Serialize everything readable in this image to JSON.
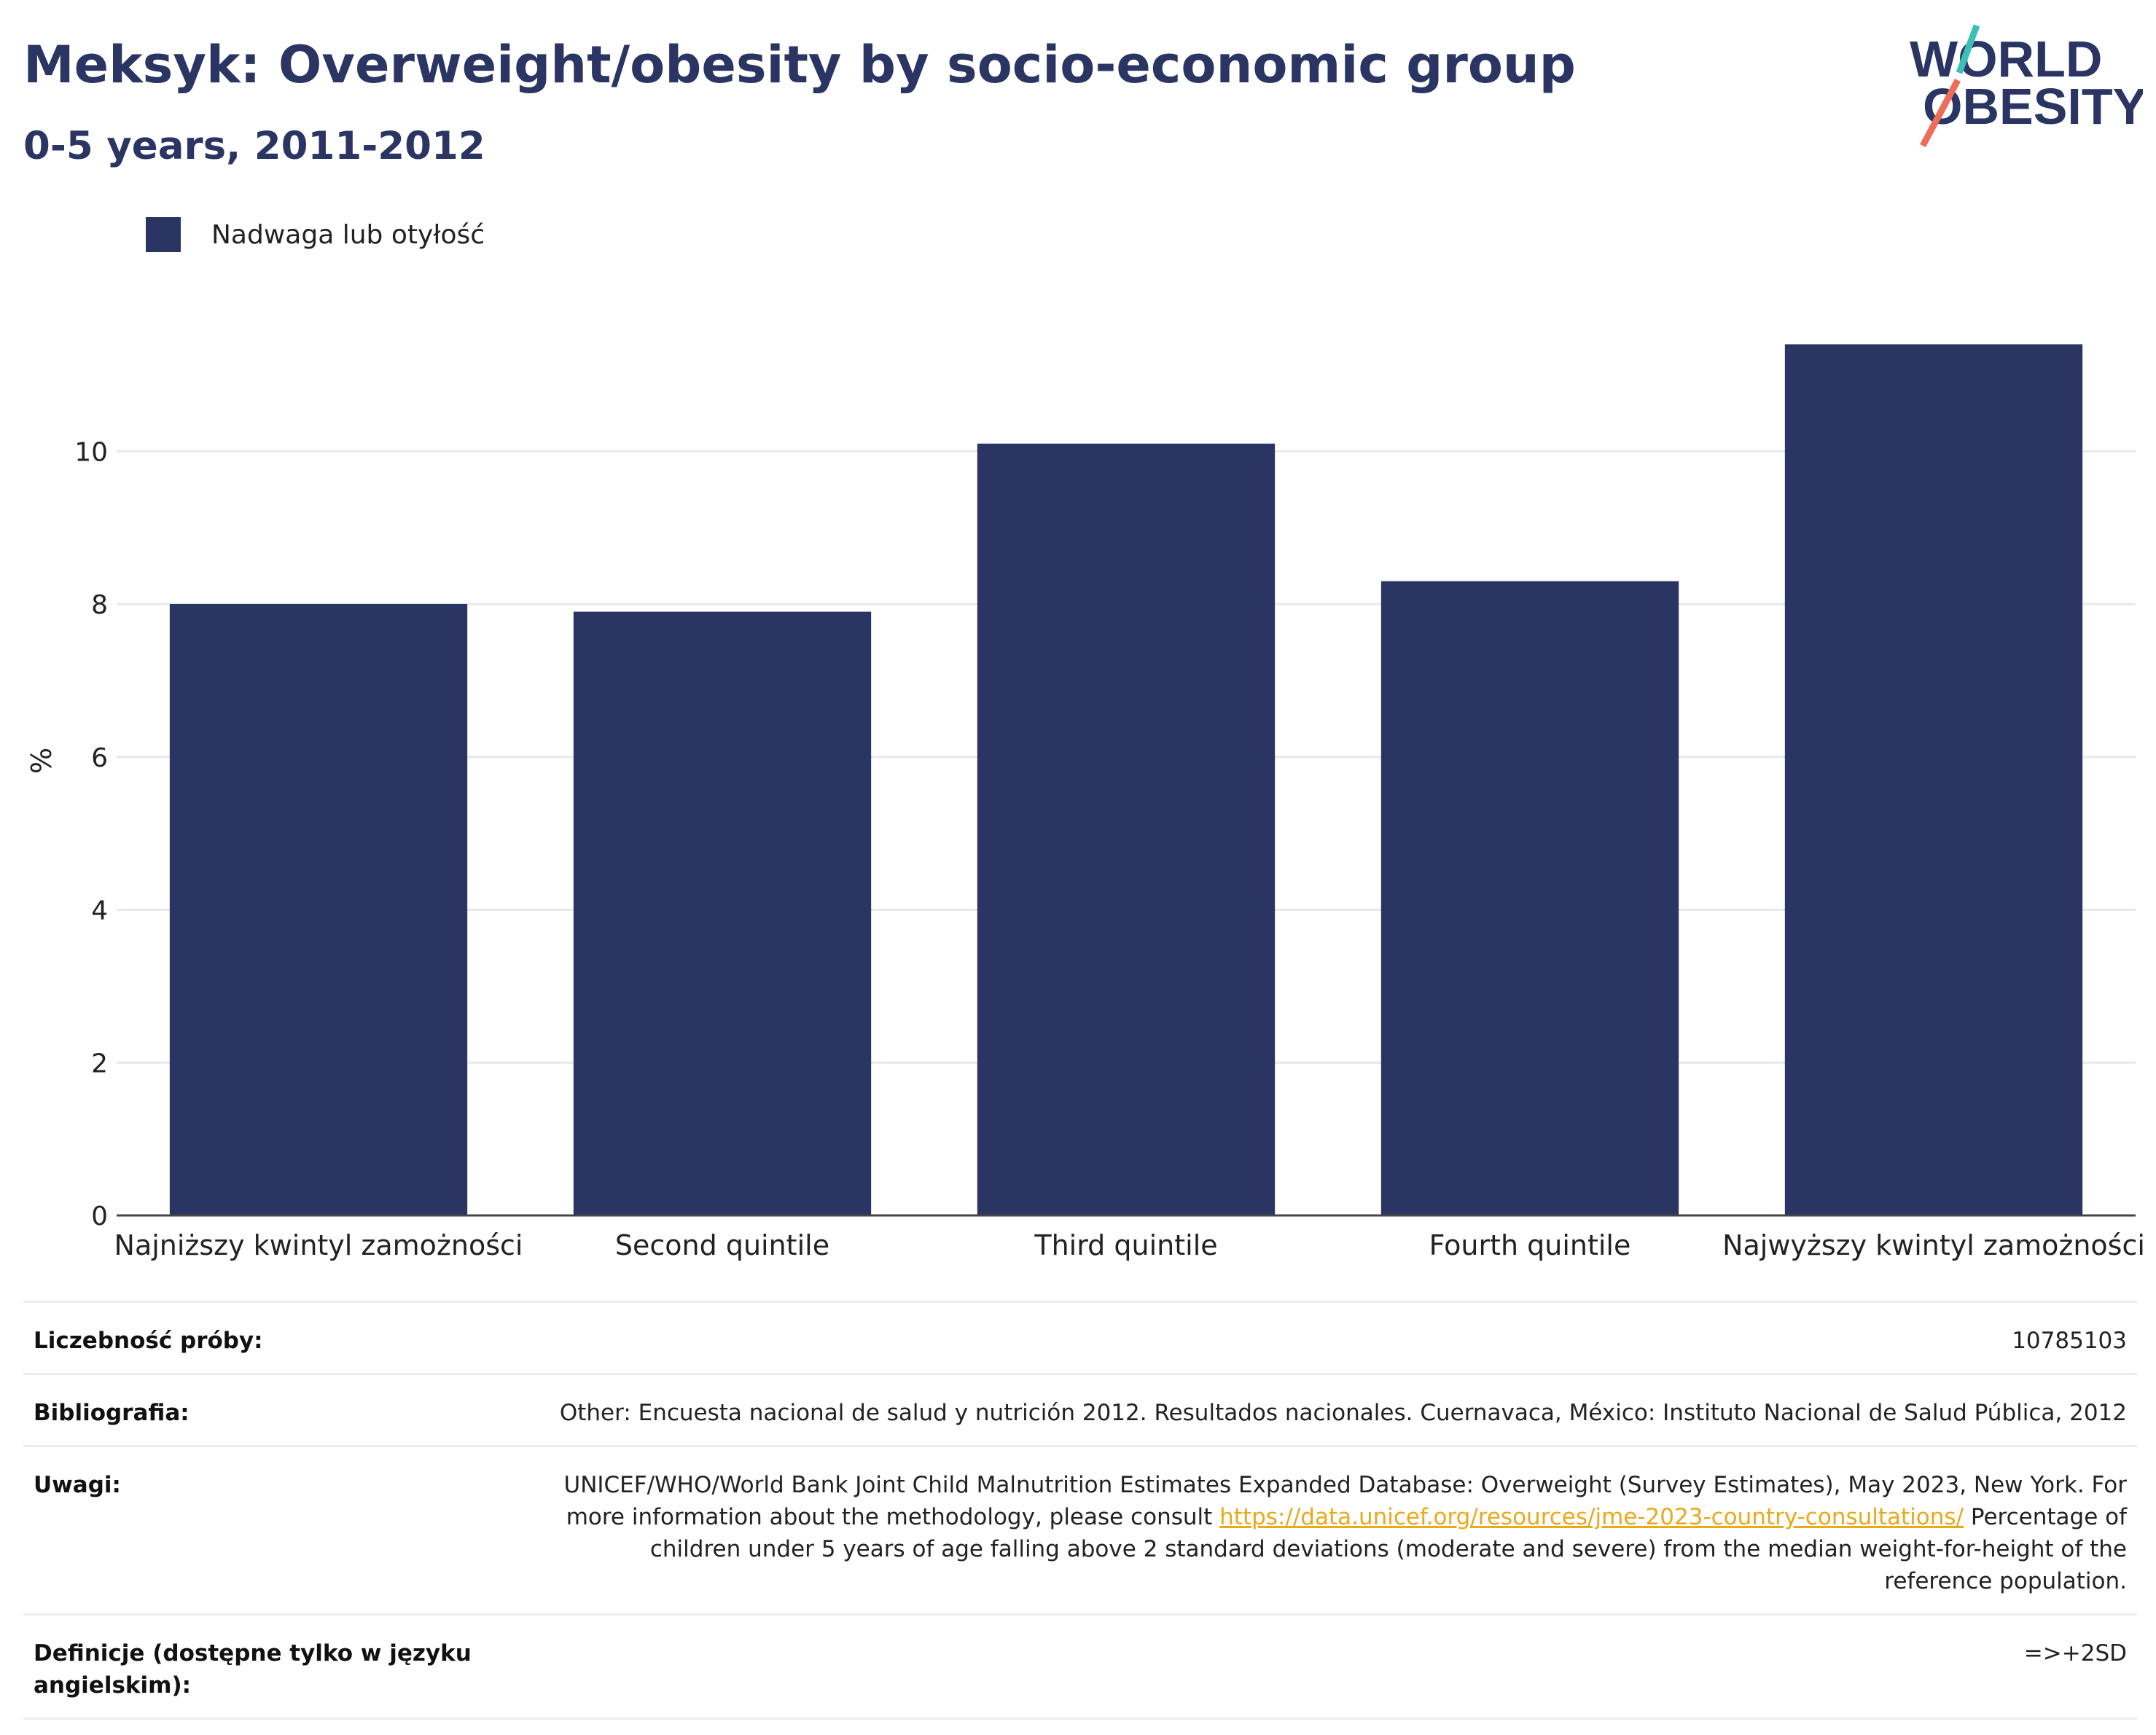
{
  "header": {
    "title": "Meksyk: Overweight/obesity by socio-economic group",
    "subtitle": "0-5 years, 2011-2012"
  },
  "logo": {
    "line1": "WORLD",
    "line2": "OBESITY",
    "text_color": "#2a3563",
    "accent_teal": "#3bbfb8",
    "accent_coral": "#ee6c5a"
  },
  "legend": {
    "label": "Nadwaga lub otyłość",
    "color": "#2a3563"
  },
  "chart_data": {
    "type": "bar",
    "categories": [
      "Najniższy kwintyl zamożności",
      "Second quintile",
      "Third quintile",
      "Fourth quintile",
      "Najwyższy kwintyl zamożności"
    ],
    "series": [
      {
        "name": "Nadwaga lub otyłość",
        "values": [
          8.0,
          7.9,
          10.1,
          8.3,
          11.4
        ],
        "color": "#2a3563"
      }
    ],
    "ylabel": "%",
    "yticks": [
      0,
      2,
      4,
      6,
      8,
      10
    ],
    "ylim": [
      0,
      11.9
    ],
    "grid": true,
    "legend_position": "top-left"
  },
  "info": [
    {
      "label": "Liczebność próby:",
      "value": "10785103"
    },
    {
      "label": "Bibliografia:",
      "value": "Other: Encuesta nacional de salud y nutrición 2012. Resultados nacionales. Cuernavaca, México: Instituto Nacional de Salud Pública, 2012"
    },
    {
      "label": "Uwagi:",
      "value_before": "UNICEF/WHO/World Bank Joint Child Malnutrition Estimates Expanded Database: Overweight (Survey Estimates), May 2023, New York. For more information about the methodology, please consult ",
      "link": "https://data.unicef.org/resources/jme-2023-country-consultations/",
      "value_after": " Percentage of children under 5 years of age falling above 2 standard deviations (moderate and severe) from the median weight-for-height of the reference population."
    },
    {
      "label": "Definicje (dostępne tylko w języku angielskim):",
      "value": "=>+2SD"
    }
  ]
}
